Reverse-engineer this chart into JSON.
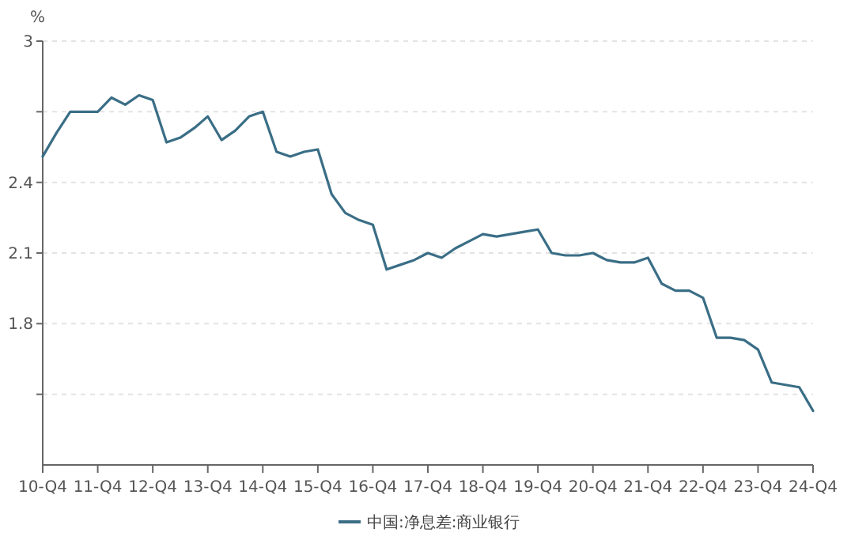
{
  "chart_data": {
    "type": "line",
    "ylabel": "%",
    "categories": [
      "10-Q4",
      null,
      null,
      null,
      "11-Q4",
      null,
      null,
      null,
      "12-Q4",
      null,
      null,
      null,
      "13-Q4",
      null,
      null,
      null,
      "14-Q4",
      null,
      null,
      null,
      "15-Q4",
      null,
      null,
      null,
      "16-Q4",
      null,
      null,
      null,
      "17-Q4",
      null,
      null,
      null,
      "18-Q4",
      null,
      null,
      null,
      "19-Q4",
      null,
      null,
      null,
      "20-Q4",
      null,
      null,
      null,
      "21-Q4",
      null,
      null,
      null,
      "22-Q4",
      null,
      null,
      null,
      "23-Q4",
      null,
      null,
      null,
      "24-Q4"
    ],
    "series": [
      {
        "name": "中国:净息差:商业银行",
        "color": "#3a6e86",
        "values": [
          2.51,
          2.61,
          2.7,
          2.7,
          2.7,
          2.76,
          2.73,
          2.77,
          2.75,
          2.57,
          2.59,
          2.63,
          2.68,
          2.58,
          2.62,
          2.68,
          2.7,
          2.53,
          2.51,
          2.53,
          2.54,
          2.35,
          2.27,
          2.24,
          2.22,
          2.03,
          2.05,
          2.07,
          2.1,
          2.08,
          2.12,
          2.15,
          2.18,
          2.17,
          2.18,
          2.19,
          2.2,
          2.1,
          2.09,
          2.09,
          2.1,
          2.07,
          2.06,
          2.06,
          2.08,
          1.97,
          1.94,
          1.94,
          1.91,
          1.74,
          1.74,
          1.73,
          1.69,
          1.55,
          1.54,
          1.53,
          1.43
        ]
      }
    ],
    "ylim": [
      1.2,
      3
    ],
    "yticks": [
      3,
      {
        "value": 2.7,
        "label": null
      },
      2.4,
      2.1,
      1.8,
      {
        "value": 1.5,
        "label": null
      }
    ],
    "grid": "y",
    "legend": "bottom",
    "marker": "none",
    "line_style": "solid"
  }
}
